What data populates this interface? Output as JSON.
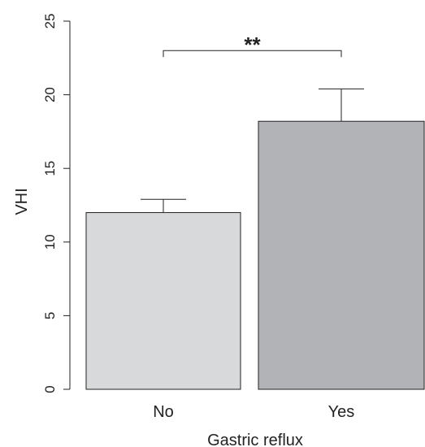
{
  "chart_data": {
    "type": "bar",
    "xlabel": "Gastric reflux",
    "ylabel": "VHI",
    "categories": [
      "No",
      "Yes"
    ],
    "values": [
      12.0,
      18.2
    ],
    "error_upper": [
      12.9,
      20.4
    ],
    "ylim": [
      0,
      25
    ],
    "yticks": [
      "0",
      "5",
      "10",
      "15",
      "20",
      "25"
    ],
    "bar_colors": [
      "#d8d9db",
      "#b2b3b6"
    ],
    "edge_color": "#222222",
    "grid": false,
    "legend": "none",
    "annotation": {
      "label": "**",
      "from": "No",
      "to": "Yes",
      "value": 23.0
    }
  }
}
